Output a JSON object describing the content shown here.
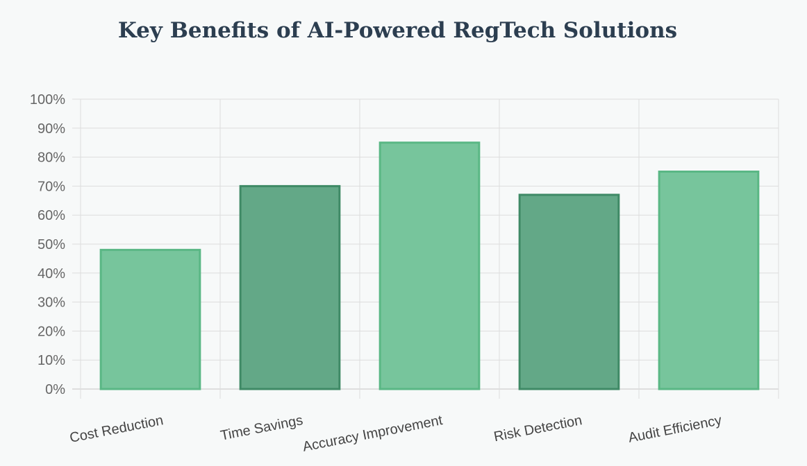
{
  "chart_data": {
    "type": "bar",
    "title": "Key Benefits of AI-Powered RegTech Solutions",
    "categories": [
      "Cost Reduction",
      "Time Savings",
      "Accuracy Improvement",
      "Risk Detection",
      "Audit Efficiency"
    ],
    "values": [
      48,
      70,
      85,
      67,
      75
    ],
    "ylim": [
      0,
      100
    ],
    "ytick_step": 10,
    "ytick_suffix": "%",
    "grid": true,
    "legend": "none",
    "colors": {
      "light_fill": "#77c59c",
      "light_border": "#5ab785",
      "dark_fill": "#63a887",
      "dark_border": "#3f8a66",
      "grid": "#dddddd",
      "axis": "#c4c4c4"
    },
    "bar_styles": [
      "light",
      "dark",
      "light",
      "dark",
      "light"
    ]
  }
}
